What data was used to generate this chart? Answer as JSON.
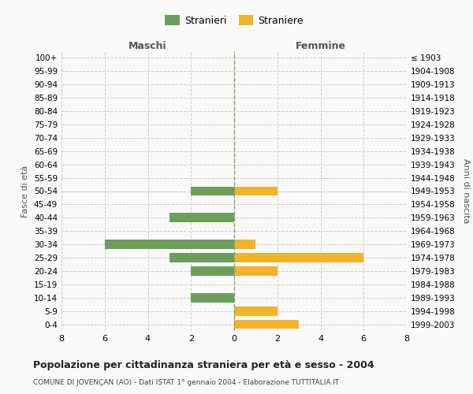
{
  "age_groups": [
    "0-4",
    "5-9",
    "10-14",
    "15-19",
    "20-24",
    "25-29",
    "30-34",
    "35-39",
    "40-44",
    "45-49",
    "50-54",
    "55-59",
    "60-64",
    "65-69",
    "70-74",
    "75-79",
    "80-84",
    "85-89",
    "90-94",
    "95-99",
    "100+"
  ],
  "birth_years": [
    "1999-2003",
    "1994-1998",
    "1989-1993",
    "1984-1988",
    "1979-1983",
    "1974-1978",
    "1969-1973",
    "1964-1968",
    "1959-1963",
    "1954-1958",
    "1949-1953",
    "1944-1948",
    "1939-1943",
    "1934-1938",
    "1929-1933",
    "1924-1928",
    "1919-1923",
    "1914-1918",
    "1909-1913",
    "1904-1908",
    "≤ 1903"
  ],
  "males": [
    0,
    0,
    2,
    0,
    2,
    3,
    6,
    0,
    3,
    0,
    2,
    0,
    0,
    0,
    0,
    0,
    0,
    0,
    0,
    0,
    0
  ],
  "females": [
    3,
    2,
    0,
    0,
    2,
    6,
    1,
    0,
    0,
    0,
    2,
    0,
    0,
    0,
    0,
    0,
    0,
    0,
    0,
    0,
    0
  ],
  "male_color": "#6a9e5a",
  "female_color": "#f0b429",
  "xlim": 8,
  "title": "Popolazione per cittadinanza straniera per età e sesso - 2004",
  "subtitle": "COMUNE DI JOVENÇAN (AO) - Dati ISTAT 1° gennaio 2004 - Elaborazione TUTTITALIA.IT",
  "ylabel_left": "Fasce di età",
  "ylabel_right": "Anni di nascita",
  "legend_male": "Stranieri",
  "legend_female": "Straniere",
  "maschi_label": "Maschi",
  "femmine_label": "Femmine",
  "bg_color": "#f9f9f9",
  "grid_color": "#cccccc",
  "center_line_color": "#999966"
}
